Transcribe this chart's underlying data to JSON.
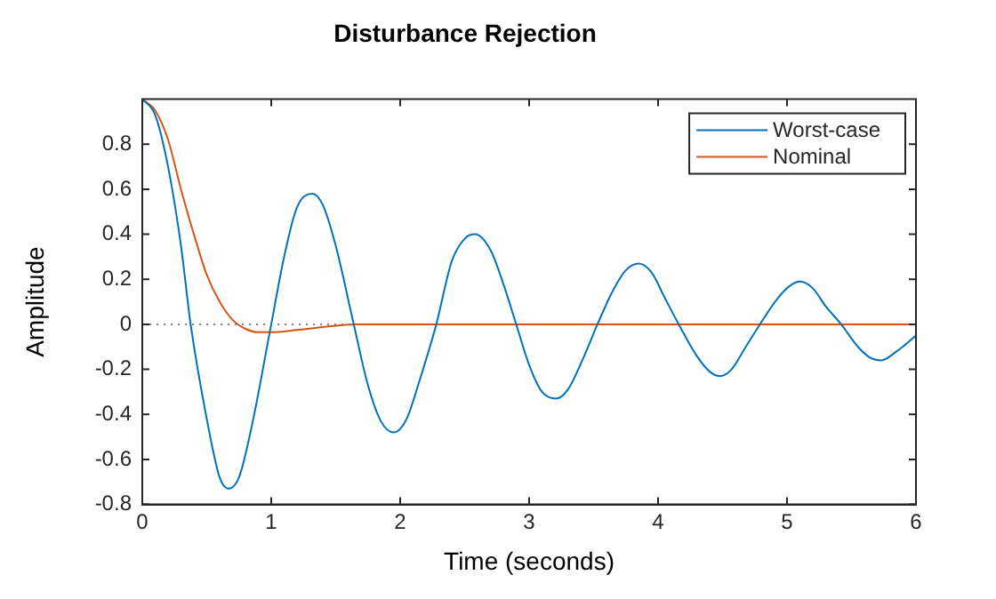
{
  "chart_data": {
    "type": "line",
    "title": "Disturbance Rejection",
    "xlabel": "Time (seconds)",
    "ylabel": "Amplitude",
    "xlim": [
      0,
      6
    ],
    "xticks": [
      0,
      1,
      2,
      3,
      4,
      5,
      6
    ],
    "ylim": [
      -0.8,
      1.0
    ],
    "yticks": [
      -0.8,
      -0.6,
      -0.4,
      -0.2,
      0,
      0.2,
      0.4,
      0.6,
      0.8
    ],
    "grid": false,
    "legend": "top right",
    "marker": "none",
    "line_style": "solid",
    "ref_lines": [
      {
        "axis": "y",
        "value": 0,
        "color": "#808080",
        "line_style": "dotted"
      }
    ],
    "series": [
      {
        "name": "Worst-case",
        "color": "#0072bd",
        "x": [
          0,
          0.1,
          0.2,
          0.3,
          0.375,
          0.5,
          0.6,
          0.67,
          0.75,
          0.85,
          1.0,
          1.1,
          1.2,
          1.32,
          1.4,
          1.5,
          1.64,
          1.75,
          1.85,
          1.95,
          2.05,
          2.15,
          2.28,
          2.4,
          2.5,
          2.58,
          2.7,
          2.8,
          2.9,
          3.0,
          3.1,
          3.21,
          3.3,
          3.42,
          3.53,
          3.65,
          3.75,
          3.85,
          3.95,
          4.05,
          4.16,
          4.3,
          4.4,
          4.48,
          4.57,
          4.68,
          4.79,
          4.92,
          5.02,
          5.1,
          5.2,
          5.3,
          5.42,
          5.55,
          5.65,
          5.73,
          5.85,
          6.0
        ],
        "values": [
          1.0,
          0.93,
          0.7,
          0.35,
          0,
          -0.42,
          -0.68,
          -0.73,
          -0.68,
          -0.45,
          0,
          0.3,
          0.52,
          0.58,
          0.53,
          0.35,
          0,
          -0.27,
          -0.43,
          -0.48,
          -0.42,
          -0.25,
          0,
          0.28,
          0.38,
          0.4,
          0.33,
          0.18,
          0,
          -0.18,
          -0.3,
          -0.33,
          -0.29,
          -0.15,
          0,
          0.15,
          0.24,
          0.27,
          0.23,
          0.12,
          0,
          -0.14,
          -0.21,
          -0.23,
          -0.2,
          -0.1,
          0,
          0.11,
          0.17,
          0.19,
          0.16,
          0.08,
          0,
          -0.1,
          -0.15,
          -0.16,
          -0.12,
          -0.05
        ]
      },
      {
        "name": "Nominal",
        "color": "#d95319",
        "x": [
          0,
          0.1,
          0.2,
          0.3,
          0.4,
          0.5,
          0.6,
          0.7,
          0.8,
          0.9,
          1.0,
          1.2,
          1.4,
          1.65,
          2,
          3,
          4,
          5,
          6
        ],
        "values": [
          1.0,
          0.95,
          0.82,
          0.6,
          0.4,
          0.22,
          0.1,
          0.02,
          -0.02,
          -0.035,
          -0.035,
          -0.025,
          -0.012,
          0,
          0,
          0,
          0,
          0,
          0
        ]
      }
    ]
  }
}
